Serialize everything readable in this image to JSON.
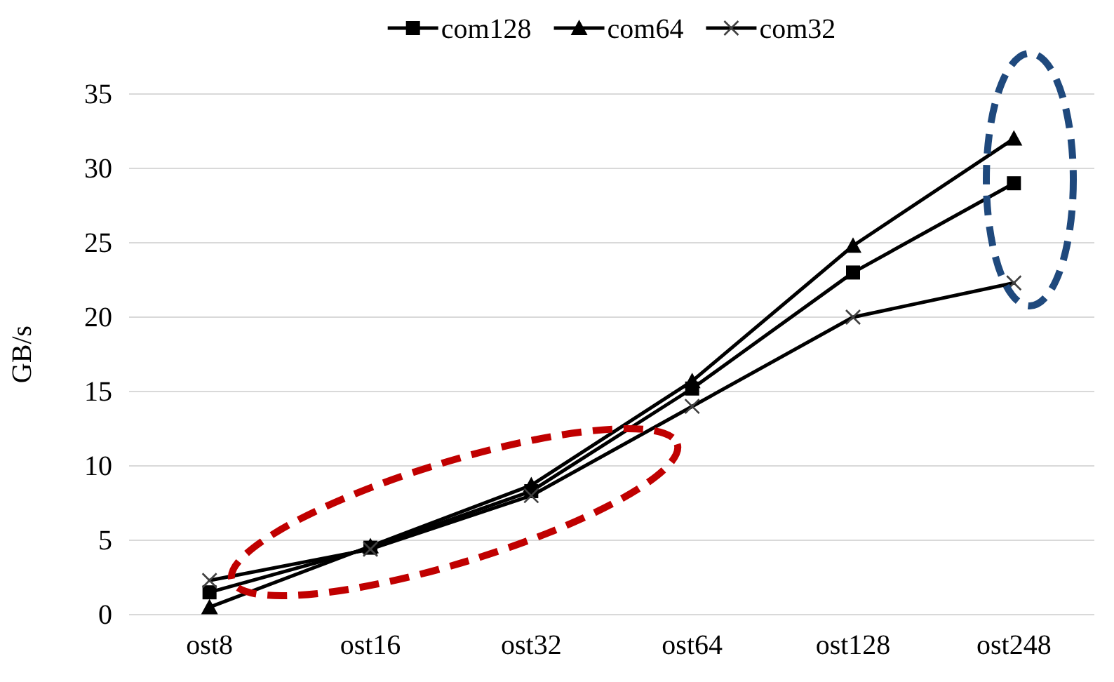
{
  "chart_data": {
    "type": "line",
    "ylabel": "GB/s",
    "categories": [
      "ost8",
      "ost16",
      "ost32",
      "ost64",
      "ost128",
      "ost248"
    ],
    "series": [
      {
        "name": "com128",
        "color": "#000000",
        "marker": "square",
        "values": [
          1.5,
          4.5,
          8.3,
          15.2,
          23,
          29
        ]
      },
      {
        "name": "com64",
        "color": "#000000",
        "marker": "triangle",
        "values": [
          0.5,
          4.6,
          8.7,
          15.7,
          24.8,
          32
        ]
      },
      {
        "name": "com32",
        "color": "#000000",
        "marker": "cross",
        "values": [
          2.3,
          4.4,
          8,
          14,
          20,
          22.3
        ]
      }
    ],
    "ylim": [
      0,
      35
    ],
    "yticks": [
      0,
      5,
      10,
      15,
      20,
      25,
      30,
      35
    ],
    "grid": "y",
    "legend": "top",
    "line_style": "solid"
  }
}
